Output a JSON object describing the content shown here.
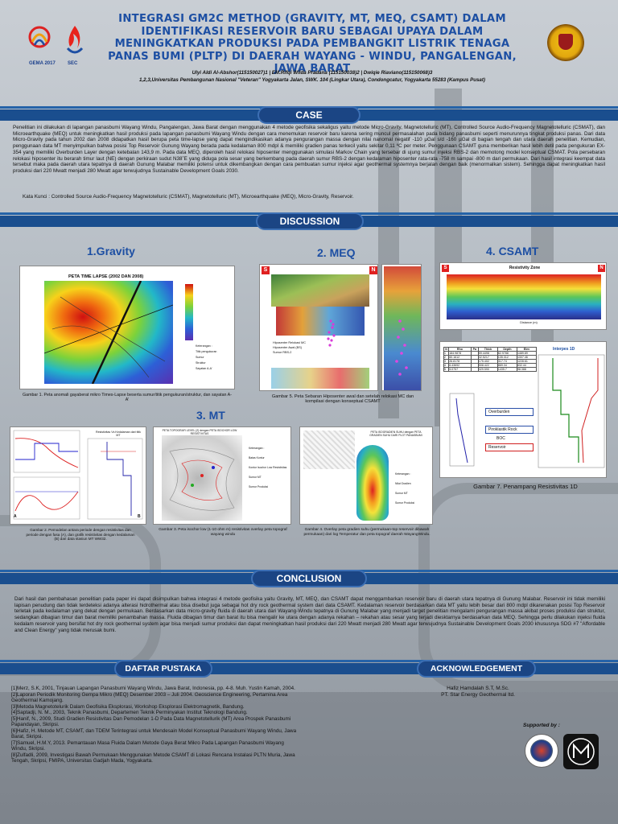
{
  "header": {
    "title": "INTEGRASI GM2C METHOD (GRAVITY, MT, MEQ, CSAMT)  DALAM IDENTIFIKASI RESERVOIR BARU SEBAGAI UPAYA  DALAM MENINGKATKAN PRODUKSI  PADA PEMBANGKIT LISTRIK TENAGA PANAS BUMI (PLTP) DI DAERAH WAYANG - WINDU, PANGALENGAN, JAWA BARAT",
    "authors_line1": "Ulyi Aldi Al-Abshor(115150027)1 | EM.Rifqi Wilda Pradana (115150038)2 | Dwiqie Riaviano(115150068)3",
    "authors_line2": "1,2,3,Universitas Pembangunan Nasional \"Veteran\" Yogyakarta Jalan, SWK. 104 (Lingkar Utara), Condongcatur, Yogyakarta 55283 (Kampus Pusat)",
    "logo1": "GEMA 2017",
    "logo2": "SEC"
  },
  "case": {
    "heading": "CASE",
    "text": "Penelitian ini dilakukan di lapangan panasbumi Wayang Windu, Pangalengan, Jawa Barat dengan menggunakan 4 metode geofisika sekaligus yaitu metode Micro-Gravity, Magnetotelluric (MT), Controlled Source Audio-Frequency Magnetotelluric (CSMAT), dan Microearthquake (MEQ) untuk meningkatkan hasil produksi pada lapangan panasbumi Wayang Windu dengan cara menemukan reservoir baru karena sering muncul permasalahan pada bidang panasbumi seperti menurunnya tingkat produksi panas. Dari data Micro-Gravity pada tahun 2002 dan 2008 didapatkan hasil berupa peta time-lapse yang dapat mengindikasikan adanya pengurangan massa dengan nilai nanomal negatif -110 µGal s/d -160 µGal  di bagian tengah dan utara daerah penelitian. Kemudian, penggunaan data MT menyimpulkan bahwa posisi Top Reservoir Gunung Wayang berada pada kedalaman 800 mdpl & memiliki gradien panas terkecil yaitu sekitar 0,11 ºC per meter. Penggunaan CSAMT guna memberikan hasil lebih detil pada pengukuran EX-354 yang memiliki Overburden Layer dengan ketebalan 143,9 m. Pada data MEQ, diperoleh hasil relokasi hiposenter menggunakan simulasi Markov Chain yang tersebar di ujung sumur injeksi RBS-2 dan memotong model konseptual CSMAT. Pola persebaran relokasi hiposenter itu berarah timur laut (NE) dengan perkiraan sudut N38˚E yang diduga pola sesar yang berkembang pada daerah sumur RBS-2 dengan kedalaman hiposenter rata-rata -758 m sampai -800 m dari permukaan. Dari hasil integrasi keempat data tersebut maka pada daerah utara tepatnya di daerah Gunung Malabar memiliki potensi untuk dikembangkan dengan cara pembuatan sumur injeksi agar geothermal systemnya berjalan dengan baik (menormalkan sistem). Sehingga dapat meningkatkan hasil produksi dari 220 Mwatt menjadi 280 Mwatt agar terwujudnya Sustainable Development Goals 2030.",
    "keywords": "Kata Kunci : Controlled Source Audio-Frequency Magnetotelluric (CSMAT), Magnetotelluric (MT), Microearthquake (MEQ), Micro-Gravity, Reservoir."
  },
  "discussion": {
    "heading": "DISCUSSION",
    "gravity": {
      "label": "1.Gravity",
      "map_title": "PETA TIME LAPSE (2002 DAN 2008)",
      "caption": "Gambar 1. Peta anomali gayaberat mikro Times-Lapse beserta sumur/titik pengukuran/struktur, dan sayatan A-A'",
      "legend_items": [
        "Keterangan :",
        "Titik pengukuran",
        "Sumur",
        "Struktur",
        "Sayatan A-A'"
      ]
    },
    "meq": {
      "label": "2. MEQ",
      "caption": "Gambar 5.  Peta Sebaran Hiposenter awal dan setelah relokasi MC dan kompilasi dengan konseptual CSAMT",
      "legend_items": [
        "Hiposenter Relokasi MC",
        "Hiposenter Awal (BS)",
        "Sumur RBS-2"
      ],
      "dir_s": "S",
      "dir_n": "N"
    },
    "csamt": {
      "label": "4. CSAMT",
      "zone_title": "Resistivity Zone",
      "distance_label": "Distance (m)",
      "dir_s": "S",
      "dir_n": "N",
      "interpes_title": "Interpes 1D",
      "table_headers": [
        "N",
        "Rho",
        "Pa",
        "Thick",
        "Depth",
        "Elev"
      ],
      "table_rows": [
        [
          "1",
          "184.9878",
          "",
          "59.4498",
          "62.9788",
          "1489.89"
        ],
        [
          "2",
          "60.1612",
          "",
          "32.5217",
          "135.312",
          "1307.46"
        ],
        [
          "3",
          "26.8178",
          "",
          "175.402",
          "317.74",
          "1228.61"
        ],
        [
          "4",
          "6.43692",
          "",
          "508.422",
          "869.34",
          "632.44"
        ],
        [
          "5",
          "5.0757",
          "",
          "329.590",
          "1435.7",
          "98.388"
        ]
      ],
      "layer_labels": [
        "Overburden",
        "Piroklastik Rock",
        "BOC",
        "Reservoir"
      ],
      "caption": "Gambar 7. Penampang Resistivitas 1D"
    },
    "mt": {
      "label": "3. MT",
      "curve_title": "Resistivitas Vs Kedalaman dari titik MT",
      "fig2_caption": "Gambar 2. Pemodelan antara periode dengan resistivitas dan periode dengan fasa (A), dan grafik resistivitas dengan kedalaman (B) dari data stasiun MT WW32.",
      "fig3_title": "PETA TOPOGRAFI LEVEL (2) dengan PETA ISOCHOR LOW RESISTIVITAS",
      "fig3_caption": "Gambar 3. Peta isochor low (1-10 ohm m) resistivitas overlay peta topograf wayang windu",
      "fig4_title": "PETA ISOGRADIEN SUHU dengan PETA GRADIEN SUHU DARI PLOT PANASBUMI",
      "fig4_caption": "Gambar 4. Overlay peta gradien suhu (permukaan-top reservoir dibawah permukaan) dari log Temperatur dan peta topograf daerah WayangWindu.",
      "fig3_legend": [
        "Keterangan :",
        "Batas Kontur",
        "Kontur Isochor Low Resistivitas",
        "Sumur MT",
        "Sumur Produksi"
      ],
      "fig4_legend": [
        "Keterangan :",
        "Nilai Gradien",
        "Sumur MT",
        "Sumur Produksi"
      ],
      "label_a": "A",
      "label_b": "B"
    }
  },
  "conclusion": {
    "heading": "CONCLUSION",
    "text": "Dari hasil dan pembahasan penelitian pada paper ini dapat disimpulkan bahwa integrasi 4 metode geofisika yaitu Gravity, MT, MEQ, dan CSAMT dapat  menggambarkan reservoir baru di daerah utara tepatnya di Gunung Malabar. Reservoir ini tidak memiliki lapisan penudung dan tidak terdeteksi adanya alterasi hidrothermal atau bisa disebut juga sebagai hot dry rock geothermal system dari data CSAMT. Kedalaman reservoir berdasarkan data MT yaitu lebih besar dari 800 mdpl dikarenakan posisi Top Reservoir terletak pada kedalaman yang dekat dengan permukaan. Berdasarkan data micro-gravity fluida di daerah utara dari Wayang-Windu tepatnya di Gunung Malabar yang menjadi target penelitian mengalami pengurangan massa akibat proses produksi dan struktur, sedangkan dibagian timur dan barat memiliki penambahan massa. Fluida dibagian timur dan barat itu bisa mengalir ke utara dengan adanya rekahan – rekahan atau sesar yang terjadi diesktarnya berdasarkan data MEQ. Sehingga perlu dilakukan injeksi fluida kedalam reservoir yang bersifat hot dry rock geothermal system agar bisa menjadi sumur produksi dan dapat meningkatkan hasil produksi dari 220 Mwatt menjadi 280 Mwatt agar terwujudnya Sustainable Development Goals 2030 khususnya SDG #7 \"Affordable and Clean Energy\" yang tidak merusak bumi."
  },
  "references": {
    "heading": "DAFTAR PUSTAKA",
    "items": [
      "[1]Merz, S.K, 2001, Tinjauan Lapangan Panasbumi Wayang Windu, Jawa Barat, Indonesia, pp. 4-8. Muh. Yustin Kamah, 2004.",
      "[2]Laporan Periodik Monitoring Gempa Mikro (MEQ) Desember 2003 – Juli 2004. Geoscience Engineering, Pertamina Area Geothermal Kamojang.",
      "[3]Metoda Magnetotelurik Dalam Geofisika Eksplorasi, Workshop Eksplorasi Elektromagnetik, Bandung.",
      "[4]Saptadji, N. M., 2003, Teknik Panasbumi, Departemen Teknik Perminyakan Institut Teknologi Bandung.",
      "[5]Hanif, N., 2009, Studi Gradien Resistivitas Dan Pemodelan 1-D Pada Data Magnetotellurik (MT) Area Prospek Panasbumi Papandayan, Skripsi.",
      "[6]Hafiz, H. Metode MT, CSAMT, dan TDEM Terintegrasi untuk Mendesain Model Konseptual Panasbumi Wayang Windu, Jawa Barat, Skripsi.",
      "[7]Samuel, H.M.Y, 2013. Pemantauan Masa Fluida Dalam Metode Gaya Berat Mikro Pada Lapangan Panasbumi Wayang Windu, Skripsi.",
      "[8]Zulfadli, 2009, Investigasi Bawah Permukaan Menggunakan Metode CSAMT di Lokasi Rencana Instalasi PLTN Muria, Jawa Tengah, Skripsi, FMIPA, Universitas Gadjah Mada, Yogyakarta."
    ]
  },
  "acknowledgement": {
    "heading": "ACKNOWLEDGEMENT",
    "line1": "Hafiz Hamdalah S.T, M.Sc.",
    "line2": "PT. Star Energy Geothermal ltd.",
    "supported_by": "Supported by :"
  },
  "colors": {
    "bar": "#1a4e8e",
    "pill": "#1b4584",
    "title": "#1d4fa3"
  }
}
